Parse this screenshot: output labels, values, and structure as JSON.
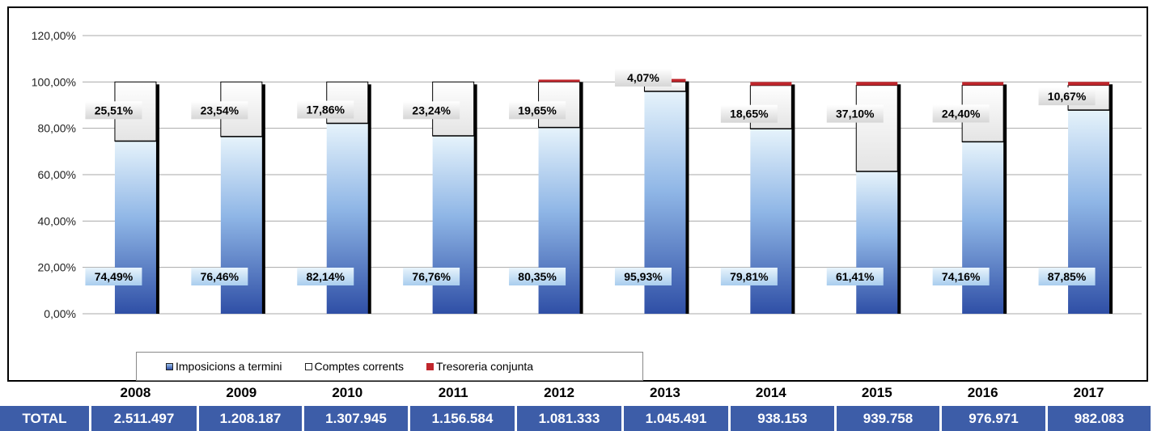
{
  "chart_data": {
    "type": "bar",
    "stacked": true,
    "categories": [
      "2008",
      "2009",
      "2010",
      "2011",
      "2012",
      "2013",
      "2014",
      "2015",
      "2016",
      "2017"
    ],
    "series": [
      {
        "name": "Imposicions a termini",
        "color": "#3a5fb4",
        "values": [
          74.49,
          76.46,
          82.14,
          76.76,
          80.35,
          95.93,
          79.81,
          61.41,
          74.16,
          87.85
        ],
        "labels": [
          "74,49%",
          "76,46%",
          "82,14%",
          "76,76%",
          "80,35%",
          "95,93%",
          "79,81%",
          "61,41%",
          "74,16%",
          "87,85%"
        ]
      },
      {
        "name": "Comptes corrents",
        "color": "#ffffff",
        "values": [
          25.51,
          23.54,
          17.86,
          23.24,
          19.65,
          4.07,
          18.65,
          37.1,
          24.4,
          10.67
        ],
        "labels": [
          "25,51%",
          "23,54%",
          "17,86%",
          "23,24%",
          "19,65%",
          "4,07%",
          "18,65%",
          "37,10%",
          "24,40%",
          "10,67%"
        ]
      },
      {
        "name": "Tresoreria conjunta",
        "color": "#c0262c",
        "values": [
          0,
          0,
          0,
          0,
          1.0,
          1.3,
          1.5,
          1.5,
          1.4,
          1.5
        ],
        "labels": []
      }
    ],
    "ylim": [
      0,
      120
    ],
    "yticks": [
      "0,00%",
      "20,00%",
      "40,00%",
      "60,00%",
      "80,00%",
      "100,00%",
      "120,00%"
    ],
    "grid": true,
    "legend_position": "bottom-left"
  },
  "table": {
    "total_label": "TOTAL",
    "totals": [
      "2.511.497",
      "1.208.187",
      "1.307.945",
      "1.156.584",
      "1.081.333",
      "1.045.491",
      "938.153",
      "939.758",
      "976.971",
      "982.083"
    ]
  }
}
